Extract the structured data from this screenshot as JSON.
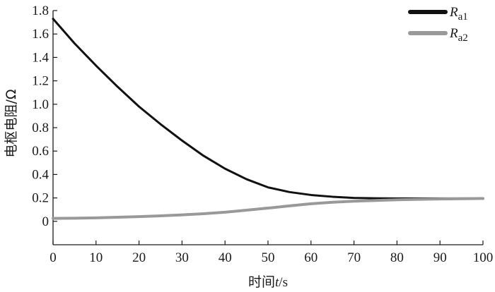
{
  "chart_data": {
    "type": "line",
    "xlabel_prefix": "时间",
    "xlabel_var": "t",
    "xlabel_suffix": "/s",
    "ylabel": "电枢电阻/Ω",
    "xlim": [
      0,
      100
    ],
    "ylim": [
      -0.2,
      1.8
    ],
    "x_ticks": [
      0,
      10,
      20,
      30,
      40,
      50,
      60,
      70,
      80,
      90,
      100
    ],
    "y_ticks": [
      0,
      0.2,
      0.4,
      0.6,
      0.8,
      1.0,
      1.2,
      1.4,
      1.6,
      1.8
    ],
    "y_tick_labels": [
      "0",
      "0.2",
      "0.4",
      "0.6",
      "0.8",
      "1.0",
      "1.2",
      "1.4",
      "1.6",
      "1.8"
    ],
    "grid": false,
    "legend_position": "top-right",
    "series": [
      {
        "name_var": "R",
        "name_sub": "a1",
        "color": "#111111",
        "x": [
          0,
          5,
          10,
          15,
          20,
          25,
          30,
          35,
          40,
          45,
          50,
          55,
          60,
          65,
          70,
          75,
          80,
          85,
          90,
          95,
          100
        ],
        "y": [
          1.73,
          1.52,
          1.33,
          1.15,
          0.98,
          0.83,
          0.69,
          0.56,
          0.45,
          0.36,
          0.29,
          0.25,
          0.225,
          0.21,
          0.2,
          0.197,
          0.195,
          0.195,
          0.195,
          0.195,
          0.195
        ]
      },
      {
        "name_var": "R",
        "name_sub": "a2",
        "color": "#999999",
        "x": [
          0,
          5,
          10,
          15,
          20,
          25,
          30,
          35,
          40,
          45,
          50,
          55,
          60,
          65,
          70,
          75,
          80,
          85,
          90,
          95,
          100
        ],
        "y": [
          0.025,
          0.027,
          0.03,
          0.035,
          0.04,
          0.047,
          0.055,
          0.065,
          0.078,
          0.095,
          0.113,
          0.132,
          0.15,
          0.163,
          0.172,
          0.178,
          0.184,
          0.188,
          0.191,
          0.193,
          0.195
        ]
      }
    ]
  }
}
